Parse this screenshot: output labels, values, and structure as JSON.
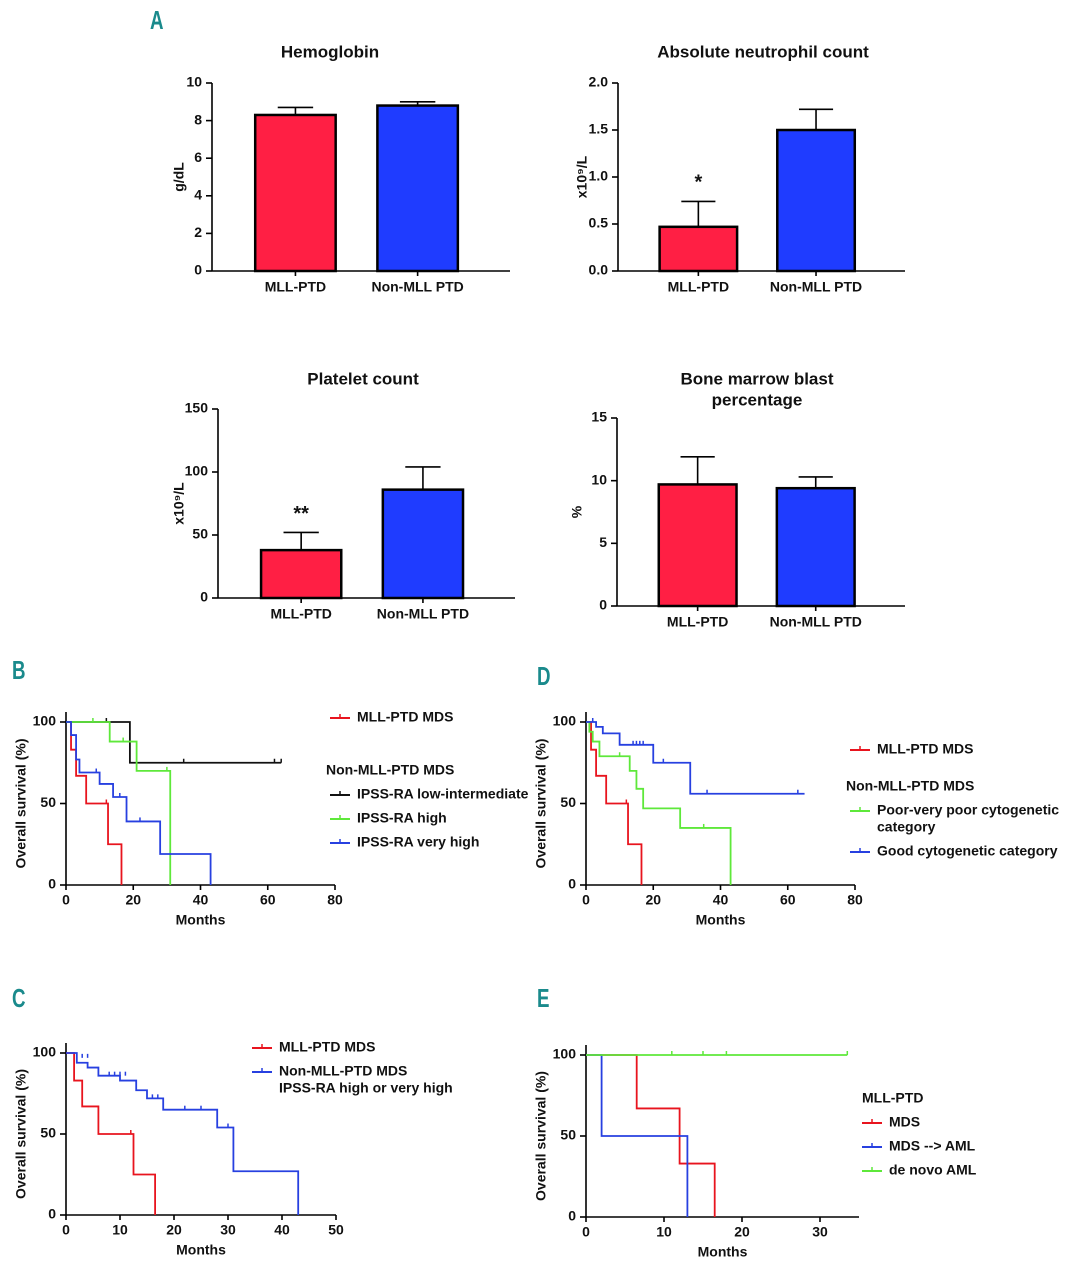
{
  "chart_data": [
    {
      "panel": "A",
      "type": "bar",
      "title": "Hemoglobin",
      "ylabel": "g/dL",
      "categories": [
        "MLL-PTD",
        "Non-MLL PTD"
      ],
      "values": [
        8.3,
        8.8
      ],
      "errors": [
        0.4,
        0.2
      ],
      "colors": [
        "#ff1f44",
        "#1f3cff"
      ],
      "ylim": [
        0,
        10
      ],
      "yticks": [
        0,
        2,
        4,
        6,
        8,
        10
      ]
    },
    {
      "type": "bar",
      "title": "Absolute neutrophil count",
      "ylabel": "x10⁹/L",
      "categories": [
        "MLL-PTD",
        "Non-MLL PTD"
      ],
      "values": [
        0.47,
        1.5
      ],
      "errors": [
        0.27,
        0.22
      ],
      "value_annotations": [
        "*",
        null
      ],
      "colors": [
        "#ff1f44",
        "#1f3cff"
      ],
      "ylim": [
        0,
        2
      ],
      "yticks": [
        {
          "value": 0,
          "label": "0.0"
        },
        0.5,
        {
          "value": 1,
          "label": "1.0"
        },
        1.5,
        {
          "value": 2,
          "label": "2.0"
        }
      ]
    },
    {
      "type": "bar",
      "title": "Platelet count",
      "ylabel": "x10⁹/L",
      "categories": [
        "MLL-PTD",
        "Non-MLL PTD"
      ],
      "values": [
        38,
        86
      ],
      "errors": [
        14,
        18
      ],
      "value_annotations": [
        "**",
        null
      ],
      "colors": [
        "#ff1f44",
        "#1f3cff"
      ],
      "ylim": [
        0,
        150
      ],
      "yticks": [
        0,
        50,
        100,
        150
      ]
    },
    {
      "type": "bar",
      "title": [
        "Bone marrow blast",
        "percentage"
      ],
      "ylabel": "%",
      "categories": [
        "MLL-PTD",
        "Non-MLL PTD"
      ],
      "values": [
        9.7,
        9.4
      ],
      "errors": [
        2.2,
        0.9
      ],
      "colors": [
        "#ff1f44",
        "#1f3cff"
      ],
      "ylim": [
        0,
        15
      ],
      "yticks": [
        0,
        5,
        10,
        15
      ]
    },
    {
      "panel": "B",
      "type": "step",
      "xlabel": "Months",
      "ylabel": "Overall survival  (%)",
      "xlim": [
        0,
        80
      ],
      "xticks": [
        0,
        20,
        40,
        60,
        80
      ],
      "ylim": [
        0,
        100
      ],
      "yticks": [
        0,
        50,
        100
      ],
      "legend_subtitle": "Non-MLL-PTD  MDS",
      "series": [
        {
          "name": "MLL-PTD  MDS",
          "color": "#e8141e",
          "x": [
            0,
            1.5,
            3,
            6,
            12.5,
            16.5
          ],
          "values": [
            100,
            83,
            67,
            50,
            25,
            0
          ],
          "censor_x": [
            12
          ],
          "censor_y": [
            50
          ]
        },
        {
          "name": "IPSS-RA low-intermediate",
          "color": "#111111",
          "x": [
            0,
            19,
            64
          ],
          "values": [
            100,
            75,
            75
          ],
          "censor_x": [
            12,
            35,
            62,
            64
          ],
          "censor_y": [
            100,
            75,
            75,
            75
          ]
        },
        {
          "name": "IPSS-RA high",
          "color": "#5ee83a",
          "x": [
            0,
            13,
            21,
            31
          ],
          "values": [
            100,
            88,
            70,
            0
          ],
          "censor_x": [
            8,
            17,
            30
          ],
          "censor_y": [
            100,
            88,
            70
          ]
        },
        {
          "name": "IPSS-RA very high",
          "color": "#2740e0",
          "x": [
            0,
            1.5,
            3,
            4,
            10,
            14,
            18,
            28,
            43
          ],
          "values": [
            100,
            92,
            77,
            69,
            62,
            54,
            39,
            19,
            0
          ],
          "censor_x": [
            9,
            16,
            22
          ],
          "censor_y": [
            69,
            54,
            39
          ]
        }
      ]
    },
    {
      "panel": "D",
      "type": "step",
      "xlabel": "Months",
      "ylabel": "Overall survival  (%)",
      "xlim": [
        0,
        80
      ],
      "xticks": [
        0,
        20,
        40,
        60,
        80
      ],
      "ylim": [
        0,
        100
      ],
      "yticks": [
        0,
        50,
        100
      ],
      "legend_subtitle": "Non-MLL-PTD  MDS",
      "series": [
        {
          "name": "MLL-PTD  MDS",
          "color": "#e8141e",
          "x": [
            0,
            1.5,
            3,
            6,
            12.5,
            16.5
          ],
          "values": [
            100,
            83,
            67,
            50,
            25,
            0
          ],
          "censor_x": [
            12
          ],
          "censor_y": [
            50
          ]
        },
        {
          "name": [
            "Poor-very poor cytogenetic",
            "category"
          ],
          "color": "#5ee83a",
          "x": [
            0,
            1,
            2,
            4,
            13,
            15,
            17,
            28,
            43
          ],
          "values": [
            100,
            94,
            88,
            79,
            70,
            59,
            47,
            35,
            0
          ],
          "censor_x": [
            10,
            35
          ],
          "censor_y": [
            79,
            35
          ]
        },
        {
          "name": "Good cytogenetic category",
          "color": "#2740e0",
          "x": [
            0,
            3,
            5,
            10,
            20,
            31,
            65
          ],
          "values": [
            100,
            97,
            93,
            86,
            75,
            56,
            56
          ],
          "censor_x": [
            2,
            14,
            15,
            16,
            17,
            23,
            36,
            63
          ],
          "censor_y": [
            100,
            86,
            86,
            86,
            86,
            75,
            56,
            56
          ]
        }
      ]
    },
    {
      "panel": "C",
      "type": "step",
      "xlabel": "Months",
      "ylabel": "Overall survival  (%)",
      "xlim": [
        0,
        50
      ],
      "xticks": [
        0,
        10,
        20,
        30,
        40,
        50
      ],
      "ylim": [
        0,
        100
      ],
      "yticks": [
        0,
        50,
        100
      ],
      "series": [
        {
          "name": "MLL-PTD  MDS",
          "color": "#e8141e",
          "x": [
            0,
            1.5,
            3,
            6,
            12.5,
            16.5
          ],
          "values": [
            100,
            83,
            67,
            50,
            25,
            0
          ],
          "censor_x": [
            12
          ],
          "censor_y": [
            50
          ]
        },
        {
          "name": [
            "Non-MLL-PTD  MDS",
            "IPSS-RA high or very high"
          ],
          "color": "#2740e0",
          "x": [
            0,
            2,
            4,
            6,
            10,
            13,
            15,
            18,
            28,
            31,
            43
          ],
          "values": [
            100,
            94,
            91,
            86,
            83,
            77,
            72,
            65,
            54,
            27,
            0
          ],
          "censor_x": [
            3,
            4,
            8,
            9,
            10,
            11,
            16,
            17,
            22,
            25,
            30
          ],
          "censor_y": [
            97,
            97,
            86,
            86,
            86,
            86,
            72,
            72,
            65,
            65,
            54
          ]
        }
      ]
    },
    {
      "panel": "E",
      "type": "step",
      "xlabel": "Months",
      "ylabel": "Overall survival  (%)",
      "xlim": [
        0,
        35
      ],
      "xticks": [
        0,
        10,
        20,
        30
      ],
      "ylim": [
        0,
        100
      ],
      "yticks": [
        0,
        50,
        100
      ],
      "legend_title": "MLL-PTD",
      "series": [
        {
          "name": "MDS",
          "color": "#e8141e",
          "x": [
            0,
            6.5,
            12,
            16.5
          ],
          "values": [
            100,
            67,
            33,
            0
          ],
          "censor_x": [],
          "censor_y": []
        },
        {
          "name": "MDS --> AML",
          "color": "#2740e0",
          "x": [
            0,
            2,
            13
          ],
          "values": [
            100,
            50,
            0
          ],
          "censor_x": [],
          "censor_y": []
        },
        {
          "name": "de novo AML",
          "color": "#5ee83a",
          "x": [
            0,
            33.5
          ],
          "values": [
            100,
            100
          ],
          "censor_x": [
            11,
            15,
            18,
            33.5
          ],
          "censor_y": [
            100,
            100,
            100,
            100
          ]
        }
      ]
    }
  ]
}
